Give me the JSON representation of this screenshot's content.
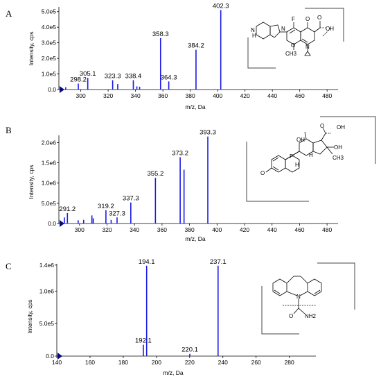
{
  "chart_data": [
    {
      "type": "bar",
      "panel_letter": "A",
      "xlabel": "m/z, Da",
      "ylabel": "Intensity, cps",
      "xlim": [
        284,
        488
      ],
      "ylim": [
        0,
        530000
      ],
      "xticks": [
        300,
        320,
        340,
        360,
        380,
        400,
        420,
        440,
        460,
        480
      ],
      "yticks": [
        {
          "value": 0,
          "label": "0.0"
        },
        {
          "value": 100000,
          "label": "1.0e5"
        },
        {
          "value": 200000,
          "label": "2.0e5"
        },
        {
          "value": 300000,
          "label": "3.0e5"
        },
        {
          "value": 400000,
          "label": "4.0e5"
        },
        {
          "value": 500000,
          "label": "5.0e5"
        }
      ],
      "peaks": [
        {
          "x": 289,
          "y": 15000
        },
        {
          "x": 298.2,
          "y": 38000,
          "label": "298.2"
        },
        {
          "x": 305.1,
          "y": 75000,
          "label": "305.1"
        },
        {
          "x": 323.3,
          "y": 60000,
          "label": "323.3"
        },
        {
          "x": 327,
          "y": 35000
        },
        {
          "x": 338.4,
          "y": 60000,
          "label": "338.4"
        },
        {
          "x": 341,
          "y": 20000
        },
        {
          "x": 343,
          "y": 18000
        },
        {
          "x": 358.3,
          "y": 330000,
          "label": "358.3"
        },
        {
          "x": 364.3,
          "y": 52000,
          "label": "364.3"
        },
        {
          "x": 384.2,
          "y": 255000,
          "label": "384.2"
        },
        {
          "x": 402.3,
          "y": 510000,
          "label": "402.3"
        }
      ],
      "structure_labels": [
        "F",
        "O",
        "N",
        "N",
        "O",
        "OH",
        "O",
        "CH3",
        "N",
        "H"
      ]
    },
    {
      "type": "bar",
      "panel_letter": "B",
      "xlabel": "m/z, Da",
      "ylabel": "Intensity, cps",
      "xlim": [
        285,
        488
      ],
      "ylim": [
        0,
        2180000
      ],
      "xticks": [
        300,
        320,
        340,
        360,
        380,
        400,
        420,
        440,
        460,
        480
      ],
      "yticks": [
        {
          "value": 0,
          "label": "0.0"
        },
        {
          "value": 500000,
          "label": "5.0e5"
        },
        {
          "value": 1000000,
          "label": "1.0e6"
        },
        {
          "value": 1500000,
          "label": "1.5e6"
        },
        {
          "value": 2000000,
          "label": "2.0e6"
        }
      ],
      "peaks": [
        {
          "x": 289,
          "y": 150000
        },
        {
          "x": 291.2,
          "y": 260000,
          "label": "291.2"
        },
        {
          "x": 299,
          "y": 80000
        },
        {
          "x": 303,
          "y": 90000
        },
        {
          "x": 309,
          "y": 200000
        },
        {
          "x": 310,
          "y": 130000
        },
        {
          "x": 319.2,
          "y": 330000,
          "label": "319.2"
        },
        {
          "x": 323,
          "y": 90000
        },
        {
          "x": 327.3,
          "y": 150000,
          "label": "327.3"
        },
        {
          "x": 337.3,
          "y": 520000,
          "label": "337.3"
        },
        {
          "x": 355.2,
          "y": 1130000,
          "label": "355.2"
        },
        {
          "x": 373.2,
          "y": 1640000,
          "label": "373.2"
        },
        {
          "x": 376,
          "y": 1330000
        },
        {
          "x": 393.3,
          "y": 2150000,
          "label": "393.3"
        }
      ],
      "structure_labels": [
        "O",
        "OH",
        "OH",
        "OH",
        "F",
        "H",
        "H",
        "CH3",
        "O"
      ]
    },
    {
      "type": "bar",
      "panel_letter": "C",
      "xlabel": "m/z, Da",
      "ylabel": "Intensity, cps",
      "xlim": [
        140,
        296
      ],
      "ylim": [
        0,
        1420000
      ],
      "xticks": [
        140,
        160,
        180,
        200,
        220,
        240,
        260,
        280
      ],
      "yticks": [
        {
          "value": 0,
          "label": "0.0"
        },
        {
          "value": 500000,
          "label": "5.0e5"
        },
        {
          "value": 1000000,
          "label": "1.0e6"
        },
        {
          "value": 1400000,
          "label": "1.4e6"
        }
      ],
      "peaks": [
        {
          "x": 192.1,
          "y": 175000,
          "label": "192.1"
        },
        {
          "x": 194.1,
          "y": 1390000,
          "label": "194.1"
        },
        {
          "x": 220.1,
          "y": 35000,
          "label": "220.1"
        },
        {
          "x": 237.1,
          "y": 1390000,
          "label": "237.1"
        }
      ],
      "structure_labels": [
        "N",
        "O",
        "NH2"
      ]
    }
  ],
  "colors": {
    "peak": "#1a1ae6",
    "axis": "#000000",
    "text": "#000000",
    "marker": "#0a0a80"
  }
}
